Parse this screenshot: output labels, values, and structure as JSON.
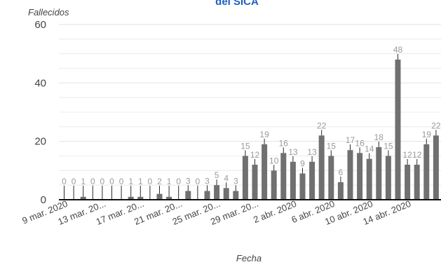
{
  "chart_data": {
    "type": "bar",
    "title": "del SICA",
    "xlabel": "Fecha",
    "ylabel": "Fallecidos",
    "ylim": [
      0,
      60
    ],
    "yticks": [
      0,
      20,
      40,
      60
    ],
    "grid": true,
    "tick_labels": [
      "9 mar. 2020",
      "13 mar. 20...",
      "17 mar. 20...",
      "21 mar. 20...",
      "25 mar. 20...",
      "29 mar. 20...",
      "2 abr. 2020",
      "6 abr. 2020",
      "10 abr. 2020",
      "14 abr. 2020"
    ],
    "categories": [
      "9 mar.",
      "10 mar.",
      "11 mar.",
      "12 mar.",
      "13 mar.",
      "14 mar.",
      "15 mar.",
      "16 mar.",
      "17 mar.",
      "18 mar.",
      "19 mar.",
      "20 mar.",
      "21 mar.",
      "22 mar.",
      "23 mar.",
      "24 mar.",
      "25 mar.",
      "26 mar.",
      "27 mar.",
      "28 mar.",
      "29 mar.",
      "30 mar.",
      "31 mar.",
      "1 abr.",
      "2 abr.",
      "3 abr.",
      "4 abr.",
      "5 abr.",
      "6 abr.",
      "7 abr.",
      "8 abr.",
      "9 abr.",
      "10 abr.",
      "11 abr.",
      "12 abr.",
      "13 abr.",
      "14 abr.",
      "15 abr.",
      "16 abr.",
      "17 abr."
    ],
    "values": [
      0,
      0,
      1,
      0,
      0,
      0,
      0,
      1,
      1,
      0,
      2,
      1,
      0,
      3,
      0,
      3,
      5,
      4,
      3,
      15,
      12,
      19,
      10,
      16,
      13,
      9,
      13,
      22,
      15,
      6,
      17,
      16,
      14,
      18,
      15,
      48,
      12,
      12,
      19,
      22
    ],
    "extra_visible_bar": 16,
    "colors": {
      "bar": "#707070",
      "error": "#2a2a2a",
      "grid": "#e6e6e6",
      "baseline": "#111111"
    }
  }
}
